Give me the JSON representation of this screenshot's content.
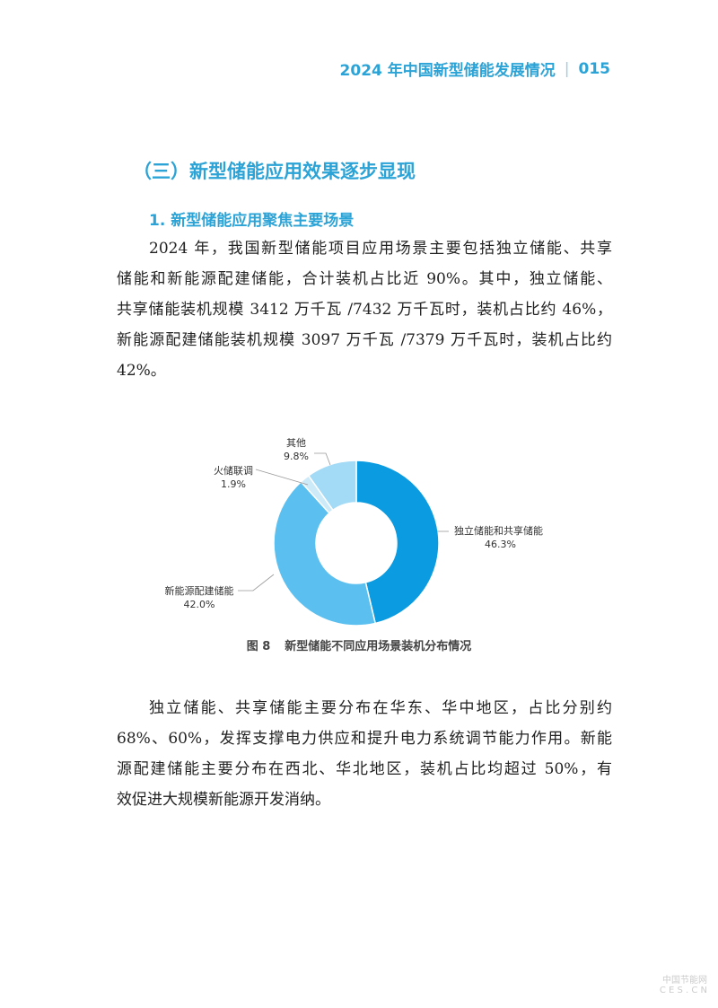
{
  "header": {
    "title": "2024 年中国新型储能发展情况",
    "page_number": "015"
  },
  "section_title": "（三）新型储能应用效果逐步显现",
  "subsection_title": "1. 新型储能应用聚焦主要场景",
  "paragraph1": [
    "2024 年，我国新型储能项目应用场景主要包括独立储能、共享",
    "储能和新能源配建储能，合计装机占比近 90%。其中，独立储能、",
    "共享储能装机规模 3412 万千瓦 /7432 万千瓦时，装机占比约 46%，",
    "新能源配建储能装机规模 3097 万千瓦 /7379 万千瓦时，装机占比约",
    "42%。"
  ],
  "paragraph2": [
    "独立储能、共享储能主要分布在华东、华中地区，占比分别约",
    "68%、60%，发挥支撑电力供应和提升电力系统调节能力作用。新能",
    "源配建储能主要分布在西北、华北地区，装机占比均超过 50%，有",
    "效促进大规模新能源开发消纳。"
  ],
  "chart_data": {
    "type": "pie",
    "donut": true,
    "title": "新型储能不同应用场景装机分布情况",
    "figure_label": "图 8",
    "slices": [
      {
        "label": "独立储能和共享储能",
        "value": 46.3,
        "value_label": "46.3%",
        "color": "#0a9be0"
      },
      {
        "label": "新能源配建储能",
        "value": 42.0,
        "value_label": "42.0%",
        "color": "#5bc0ef"
      },
      {
        "label": "火储联调",
        "value": 1.9,
        "value_label": "1.9%",
        "color": "#cdeaf8"
      },
      {
        "label": "其他",
        "value": 9.8,
        "value_label": "9.8%",
        "color": "#a3daf5"
      }
    ]
  },
  "watermark": {
    "line1": "中国节能网",
    "line2": "CES.CN"
  }
}
